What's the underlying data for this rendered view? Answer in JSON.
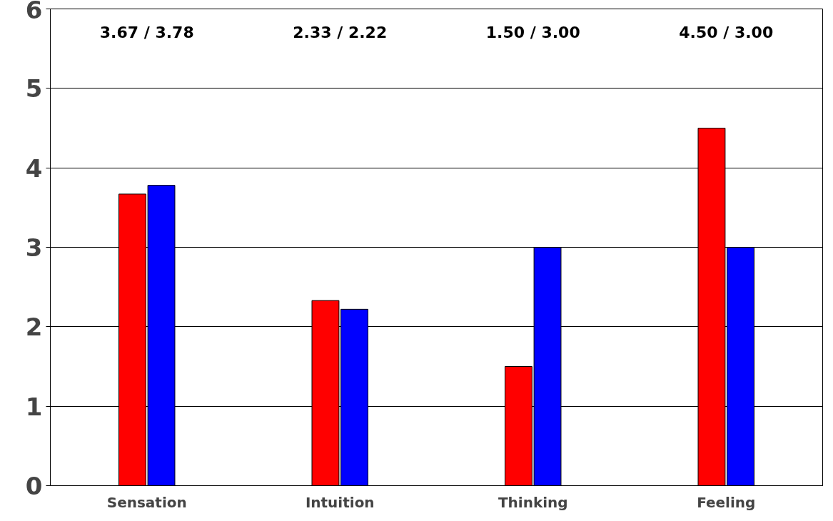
{
  "chart_data": {
    "type": "bar",
    "categories": [
      "Sensation",
      "Intuition",
      "Thinking",
      "Feeling"
    ],
    "series": [
      {
        "color": "#ff0000",
        "values": [
          3.67,
          2.33,
          1.5,
          4.5
        ]
      },
      {
        "color": "#0000ff",
        "values": [
          3.78,
          2.22,
          3.0,
          3.0
        ]
      }
    ],
    "ylim": [
      0,
      6
    ],
    "yticks": [
      0,
      1,
      2,
      3,
      4,
      5,
      6
    ],
    "grid": "y",
    "annotations": [
      "3.67 / 3.78",
      "2.33 / 2.22",
      "1.50 / 3.00",
      "4.50 / 3.00"
    ]
  }
}
